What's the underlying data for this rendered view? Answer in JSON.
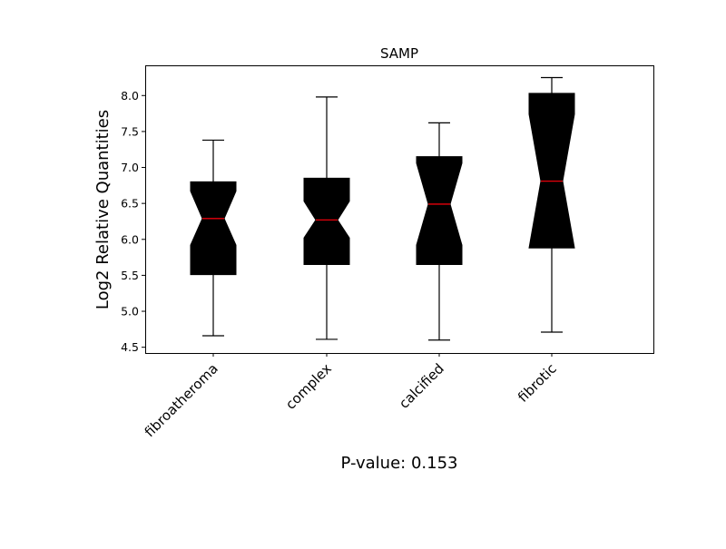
{
  "chart_data": {
    "type": "boxplot",
    "title": "SAMP",
    "ylabel": "Log2 Relative Quantities",
    "xlabel": "P-value: 0.153",
    "ylim": [
      4.42,
      8.42
    ],
    "yticks": [
      4.5,
      5.0,
      5.5,
      6.0,
      6.5,
      7.0,
      7.5,
      8.0
    ],
    "ytick_labels": [
      "4.5",
      "5.0",
      "5.5",
      "6.0",
      "6.5",
      "7.0",
      "7.5",
      "8.0"
    ],
    "notched": true,
    "box_color": "#000000",
    "median_color": "#e8000b",
    "categories": [
      "fibroatheroma",
      "complex",
      "calcified",
      "fibrotic"
    ],
    "boxes": [
      {
        "whislo": 4.66,
        "q1": 5.51,
        "med": 6.29,
        "q3": 6.8,
        "whishi": 7.38,
        "notch_lo": 5.92,
        "notch_hi": 6.67
      },
      {
        "whislo": 4.61,
        "q1": 5.65,
        "med": 6.27,
        "q3": 6.85,
        "whishi": 7.98,
        "notch_lo": 6.02,
        "notch_hi": 6.53
      },
      {
        "whislo": 4.6,
        "q1": 5.65,
        "med": 6.49,
        "q3": 7.15,
        "whishi": 7.62,
        "notch_lo": 5.92,
        "notch_hi": 7.06
      },
      {
        "whislo": 4.71,
        "q1": 5.88,
        "med": 6.81,
        "q3": 8.03,
        "whishi": 8.25,
        "notch_lo": 5.88,
        "notch_hi": 7.74
      }
    ]
  }
}
